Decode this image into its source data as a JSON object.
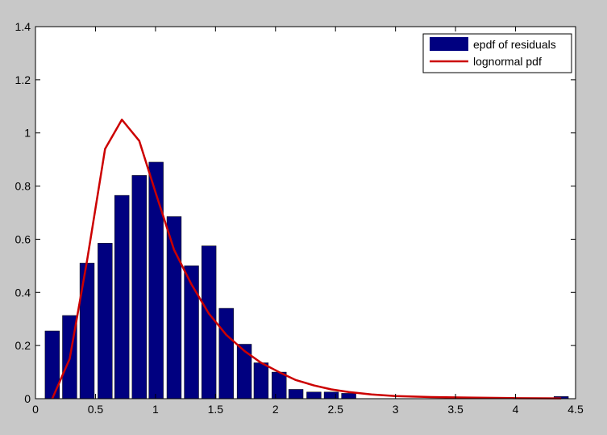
{
  "chart_data": {
    "type": "bar",
    "title": "",
    "xlabel": "",
    "ylabel": "",
    "xlim": [
      0,
      4.5
    ],
    "ylim": [
      0,
      1.4
    ],
    "grid": false,
    "legend_position": "top-right",
    "x_ticks": [
      0,
      0.5,
      1,
      1.5,
      2,
      2.5,
      3,
      3.5,
      4,
      4.5
    ],
    "x_tick_labels": [
      "0",
      "0.5",
      "1",
      "1.5",
      "2",
      "2.5",
      "3",
      "3.5",
      "4",
      "4.5"
    ],
    "y_ticks": [
      0,
      0.2,
      0.4,
      0.6,
      0.8,
      1,
      1.2,
      1.4
    ],
    "y_tick_labels": [
      "0",
      "0.2",
      "0.4",
      "0.6",
      "0.8",
      "1",
      "1.2",
      "1.4"
    ],
    "bar_width": 0.12,
    "series": [
      {
        "name": "epdf of residuals",
        "kind": "bar",
        "color": "#000080",
        "x": [
          0.14,
          0.285,
          0.43,
          0.58,
          0.72,
          0.865,
          1.005,
          1.155,
          1.3,
          1.445,
          1.59,
          1.74,
          1.88,
          2.03,
          2.17,
          2.32,
          2.465,
          2.61,
          4.38
        ],
        "values": [
          0.255,
          0.313,
          0.51,
          0.585,
          0.765,
          0.84,
          0.89,
          0.685,
          0.5,
          0.575,
          0.34,
          0.205,
          0.135,
          0.1,
          0.035,
          0.025,
          0.025,
          0.02,
          0.008
        ]
      },
      {
        "name": "lognormal pdf",
        "kind": "line",
        "color": "#cc0000",
        "x": [
          0.14,
          0.285,
          0.43,
          0.58,
          0.72,
          0.865,
          1.005,
          1.155,
          1.3,
          1.445,
          1.59,
          1.74,
          1.88,
          2.03,
          2.17,
          2.32,
          2.465,
          2.61,
          2.8,
          3.0,
          3.3,
          3.6,
          4.0,
          4.38
        ],
        "values": [
          0.0,
          0.15,
          0.52,
          0.94,
          1.05,
          0.97,
          0.77,
          0.56,
          0.43,
          0.32,
          0.24,
          0.18,
          0.135,
          0.1,
          0.07,
          0.05,
          0.035,
          0.025,
          0.016,
          0.01,
          0.006,
          0.004,
          0.002,
          0.001
        ]
      }
    ]
  }
}
